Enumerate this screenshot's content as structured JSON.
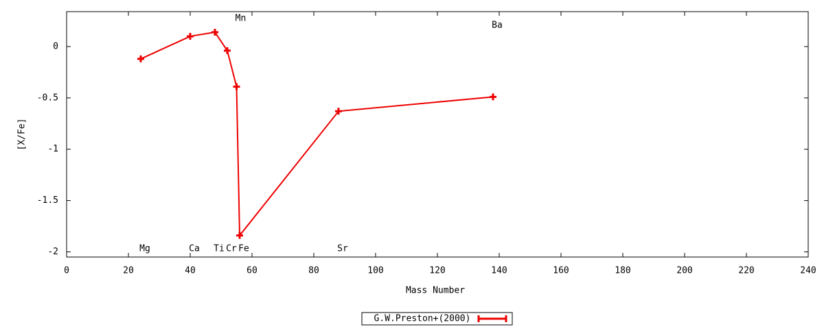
{
  "chart_data": {
    "type": "line",
    "x_label": "Mass Number",
    "y_label": "[X/Fe]",
    "xlim": [
      0,
      240
    ],
    "xticks": [
      0,
      20,
      40,
      60,
      80,
      100,
      120,
      140,
      160,
      180,
      200,
      220,
      240
    ],
    "ylim": [
      -2.05,
      0.34
    ],
    "yticks": [
      -2,
      -1.5,
      -1,
      -0.5,
      0
    ],
    "x": [
      24,
      40,
      48,
      52,
      55,
      56,
      88,
      138
    ],
    "point_labels": [
      "Mg",
      "Ca",
      "Ti",
      "Cr",
      "Mn",
      "Fe",
      "Sr",
      "Ba"
    ],
    "series": [
      {
        "name": "G.W.Preston+(2000)",
        "color": "#ee0000",
        "values": [
          -0.12,
          0.1,
          0.14,
          -0.04,
          -0.39,
          -1.84,
          -0.63,
          -0.49
        ]
      }
    ]
  }
}
